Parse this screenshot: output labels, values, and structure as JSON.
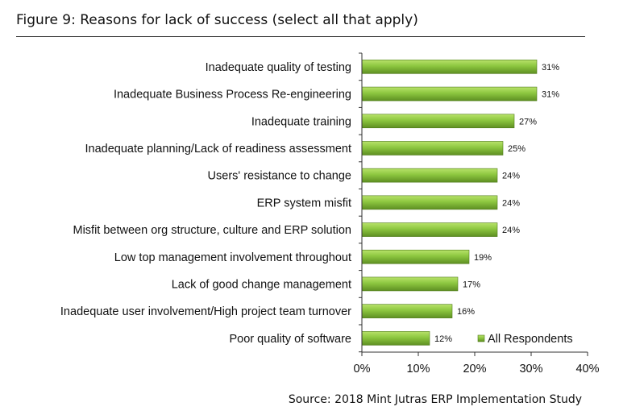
{
  "figure": {
    "title": "Figure 9: Reasons for lack of success (select all that apply)",
    "source": "Source: 2018 Mint Jutras ERP Implementation Study"
  },
  "colors": {
    "bar_top": "#b8e26a",
    "bar_mid": "#8cc63f",
    "bar_bottom": "#5e8f22",
    "bar_stroke": "#4f7a1a",
    "axis": "#333333",
    "text": "#111111"
  },
  "chart_data": {
    "type": "bar",
    "orientation": "horizontal",
    "categories": [
      "Inadequate quality of testing",
      "Inadequate Business Process Re-engineering",
      "Inadequate training",
      "Inadequate planning/Lack of readiness assessment",
      "Users' resistance to change",
      "ERP system misfit",
      "Misfit between org structure, culture and ERP solution",
      "Low top management involvement throughout",
      "Lack of good change management",
      "Inadequate user involvement/High project team turnover",
      "Poor quality of software"
    ],
    "series": [
      {
        "name": "All Respondents",
        "values": [
          31,
          31,
          27,
          25,
          24,
          24,
          24,
          19,
          17,
          16,
          12
        ],
        "labels": [
          "31%",
          "31%",
          "27%",
          "25%",
          "24%",
          "24%",
          "24%",
          "19%",
          "17%",
          "16%",
          "12%"
        ]
      }
    ],
    "xlim": [
      0,
      40
    ],
    "xticks": [
      0,
      10,
      20,
      30,
      40
    ],
    "xtick_labels": [
      "0%",
      "10%",
      "20%",
      "30%",
      "40%"
    ],
    "grid": false,
    "legend": "bottom-right"
  }
}
